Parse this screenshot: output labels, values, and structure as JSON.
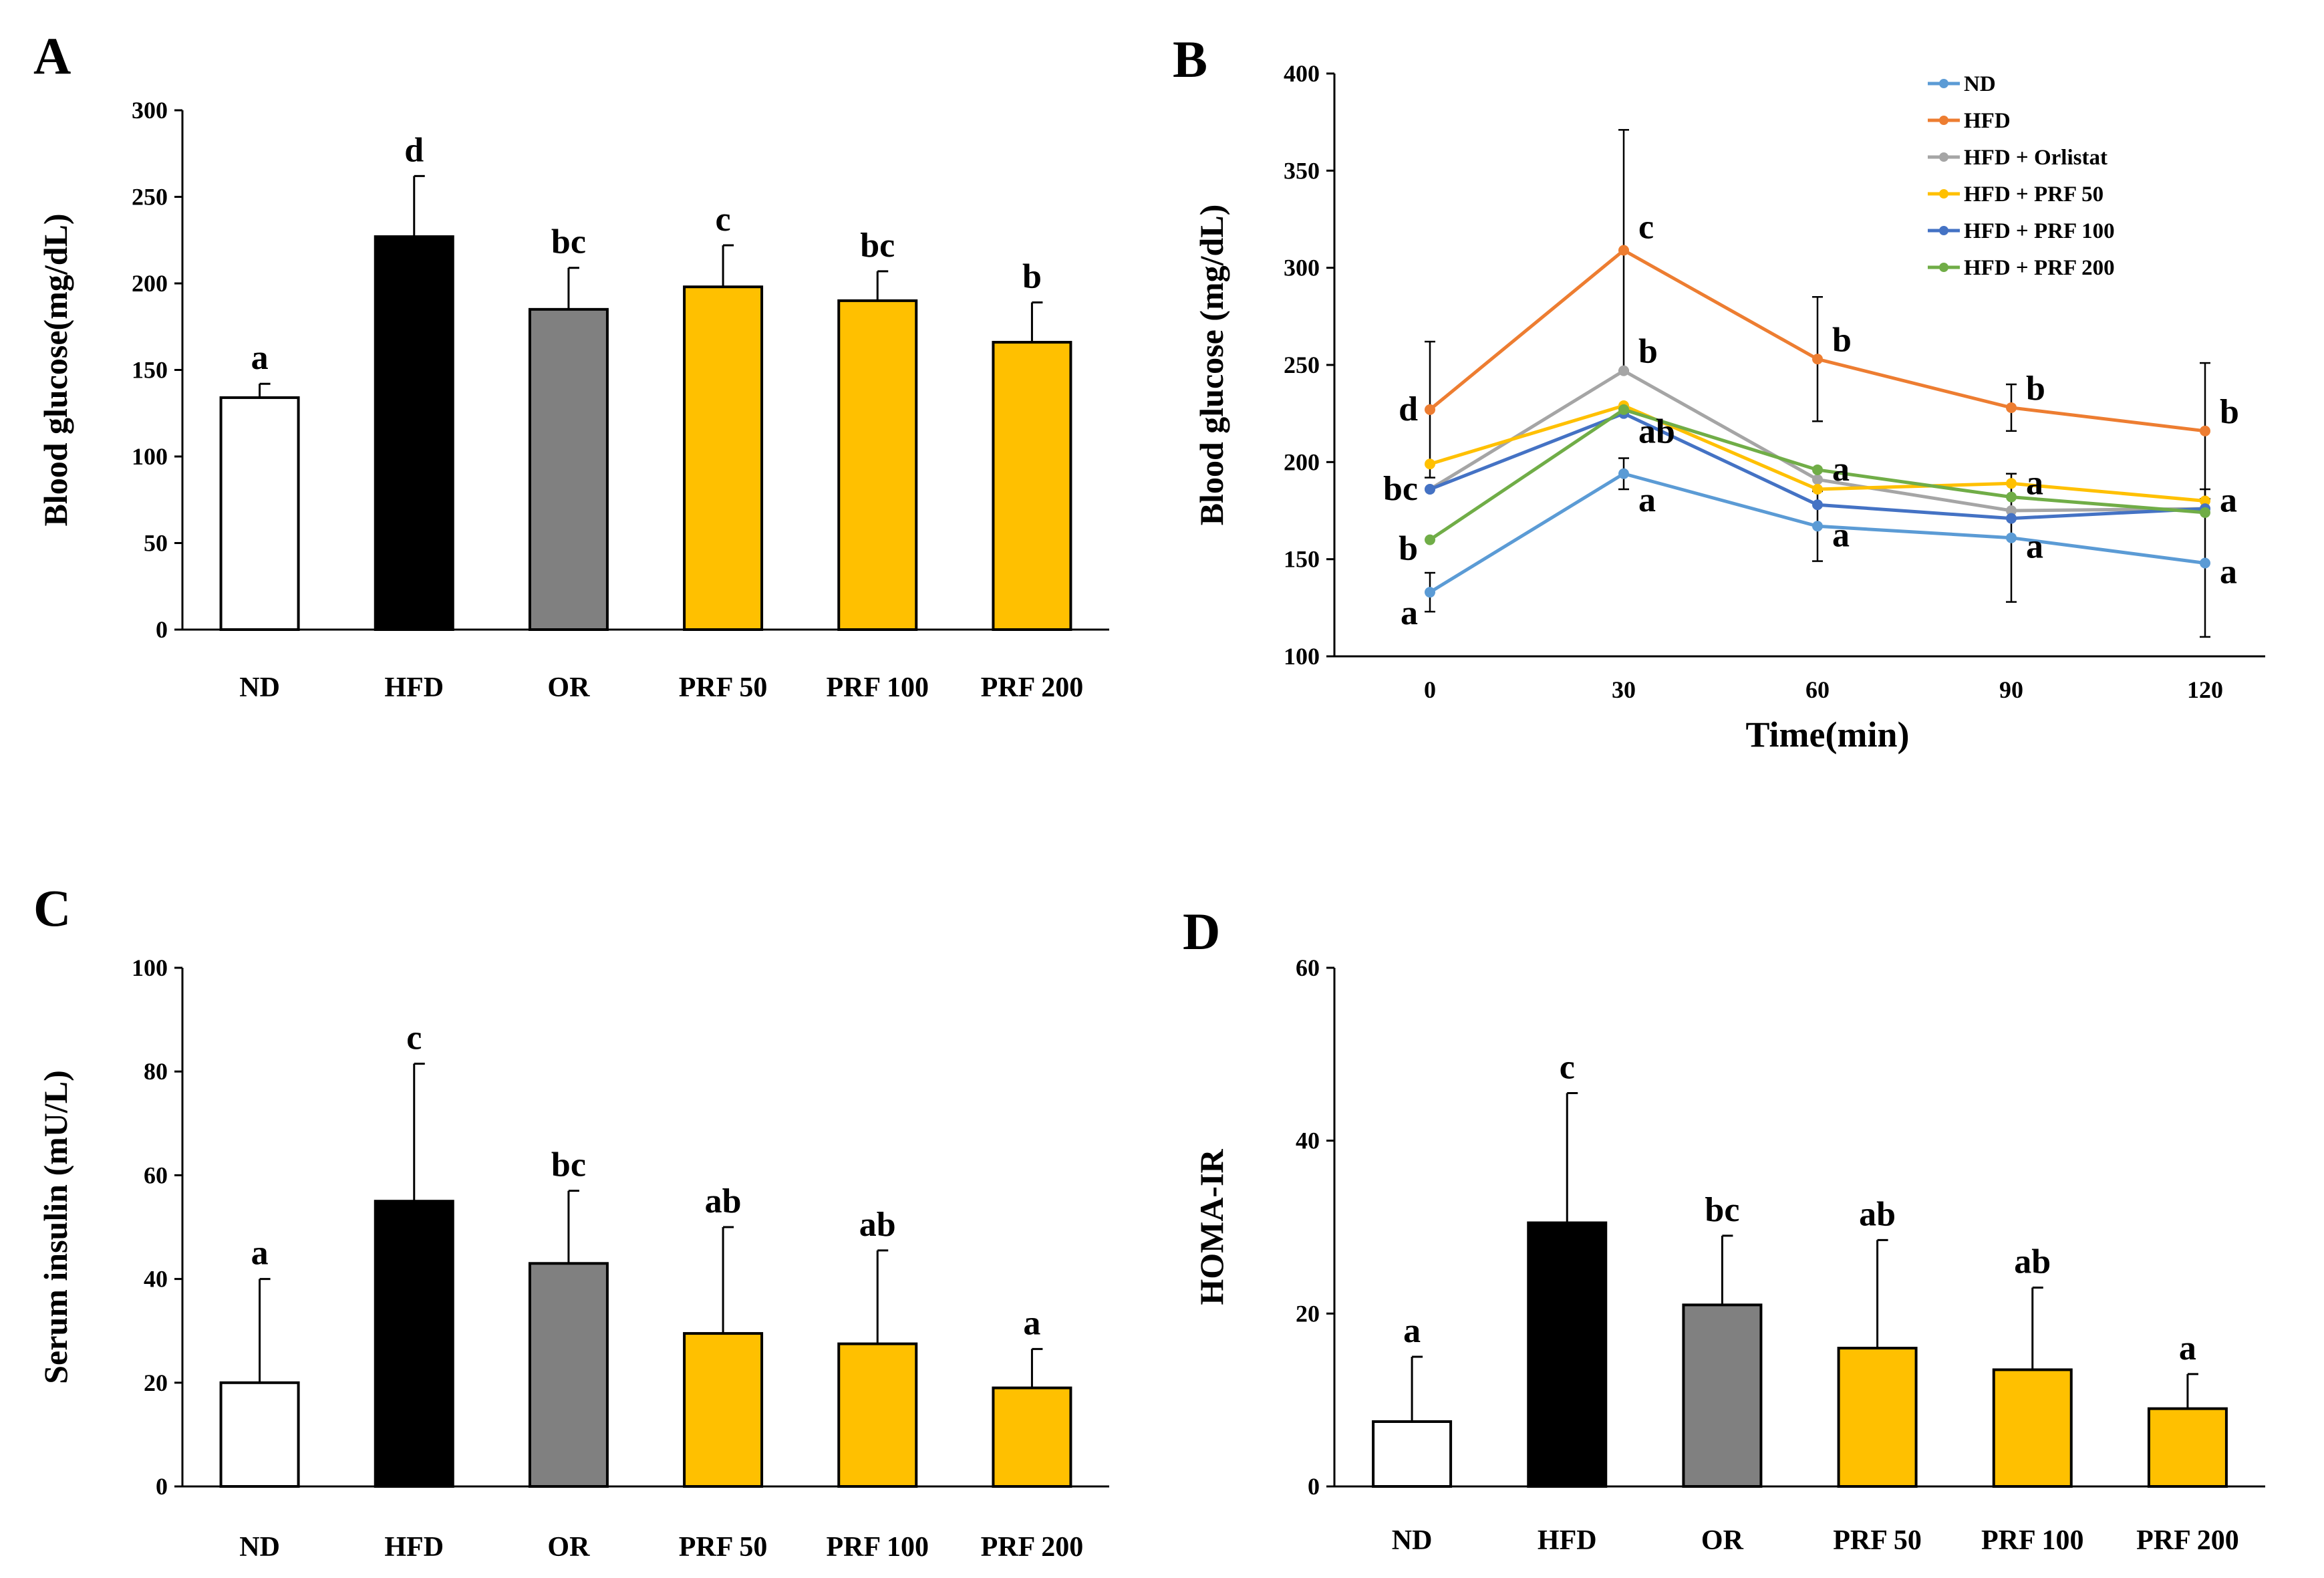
{
  "chart_data": [
    {
      "panel": "A",
      "type": "bar",
      "xlabel": "",
      "ylabel": "Blood glucose(mg/dL)",
      "ylim": [
        0,
        300
      ],
      "yticks": [
        0,
        50,
        100,
        150,
        200,
        250,
        300
      ],
      "categories": [
        "ND",
        "HFD",
        "OR",
        "PRF 50",
        "PRF 100",
        "PRF 200"
      ],
      "values": [
        134,
        227,
        185,
        198,
        190,
        166
      ],
      "errors": [
        8,
        35,
        24,
        24,
        17,
        23
      ],
      "significance": [
        "a",
        "d",
        "bc",
        "c",
        "bc",
        "b"
      ],
      "colors": [
        "#FFFFFF",
        "#000000",
        "#808080",
        "#FFC000",
        "#FFC000",
        "#FFC000"
      ]
    },
    {
      "panel": "B",
      "type": "line",
      "xlabel": "Time(min)",
      "ylabel": "Blood glucose (mg/dL)",
      "ylim": [
        100,
        400
      ],
      "yticks": [
        100,
        150,
        200,
        250,
        300,
        350,
        400
      ],
      "x": [
        0,
        30,
        60,
        90,
        120
      ],
      "legend_position": "top-right",
      "series": [
        {
          "name": "ND",
          "color": "#5B9BD5",
          "values": [
            133,
            194,
            167,
            161,
            148
          ],
          "errors": [
            10,
            8,
            18,
            33,
            38
          ]
        },
        {
          "name": "HFD",
          "color": "#ED7D31",
          "values": [
            227,
            309,
            253,
            228,
            216
          ],
          "errors": [
            35,
            62,
            32,
            12,
            35
          ]
        },
        {
          "name": "HFD + Orlistat",
          "color": "#A5A5A5",
          "values": [
            186,
            247,
            191,
            175,
            176
          ],
          "errors": [
            0,
            0,
            0,
            0,
            0
          ]
        },
        {
          "name": "HFD + PRF 50",
          "color": "#FFC000",
          "values": [
            199,
            229,
            186,
            189,
            180
          ],
          "errors": [
            0,
            0,
            0,
            0,
            0
          ]
        },
        {
          "name": "HFD + PRF 100",
          "color": "#4472C4",
          "values": [
            186,
            225,
            178,
            171,
            176
          ],
          "errors": [
            0,
            0,
            0,
            0,
            0
          ]
        },
        {
          "name": "HFD + PRF 200",
          "color": "#70AD47",
          "values": [
            160,
            227,
            196,
            182,
            174
          ],
          "errors": [
            0,
            0,
            0,
            0,
            0
          ]
        }
      ],
      "annotations": [
        {
          "text": "d",
          "x": 0,
          "y": 227
        },
        {
          "text": "bc",
          "x": 0,
          "y": 186
        },
        {
          "text": "b",
          "x": 0,
          "y": 160
        },
        {
          "text": "a",
          "x": 0,
          "y": 133
        },
        {
          "text": "c",
          "x": 30,
          "y": 309
        },
        {
          "text": "b",
          "x": 30,
          "y": 247
        },
        {
          "text": "ab",
          "x": 30,
          "y": 225
        },
        {
          "text": "a",
          "x": 30,
          "y": 194
        },
        {
          "text": "b",
          "x": 60,
          "y": 253
        },
        {
          "text": "a",
          "x": 60,
          "y": 196
        },
        {
          "text": "a",
          "x": 60,
          "y": 167
        },
        {
          "text": "b",
          "x": 90,
          "y": 228
        },
        {
          "text": "a",
          "x": 90,
          "y": 189
        },
        {
          "text": "a",
          "x": 90,
          "y": 161
        },
        {
          "text": "b",
          "x": 120,
          "y": 216
        },
        {
          "text": "a",
          "x": 120,
          "y": 180
        },
        {
          "text": "a",
          "x": 120,
          "y": 148
        }
      ]
    },
    {
      "panel": "C",
      "type": "bar",
      "xlabel": "",
      "ylabel": "Serum insulin (mU/L)",
      "ylim": [
        0,
        100
      ],
      "yticks": [
        0,
        20,
        40,
        60,
        80,
        100
      ],
      "categories": [
        "ND",
        "HFD",
        "OR",
        "PRF 50",
        "PRF 100",
        "PRF 200"
      ],
      "values": [
        20,
        55,
        43,
        29.5,
        27.5,
        19
      ],
      "errors": [
        20,
        26.5,
        14,
        20.5,
        18,
        7.5
      ],
      "significance": [
        "a",
        "c",
        "bc",
        "ab",
        "ab",
        "a"
      ],
      "colors": [
        "#FFFFFF",
        "#000000",
        "#808080",
        "#FFC000",
        "#FFC000",
        "#FFC000"
      ]
    },
    {
      "panel": "D",
      "type": "bar",
      "xlabel": "",
      "ylabel": "HOMA-IR",
      "ylim": [
        0,
        60
      ],
      "yticks": [
        0,
        20,
        40,
        60
      ],
      "categories": [
        "ND",
        "HFD",
        "OR",
        "PRF 50",
        "PRF 100",
        "PRF 200"
      ],
      "values": [
        7.5,
        30.5,
        21,
        16,
        13.5,
        9
      ],
      "errors": [
        7.5,
        15,
        8,
        12.5,
        9.5,
        4
      ],
      "significance": [
        "a",
        "c",
        "bc",
        "ab",
        "ab",
        "a"
      ],
      "colors": [
        "#FFFFFF",
        "#000000",
        "#808080",
        "#FFC000",
        "#FFC000",
        "#FFC000"
      ]
    }
  ]
}
